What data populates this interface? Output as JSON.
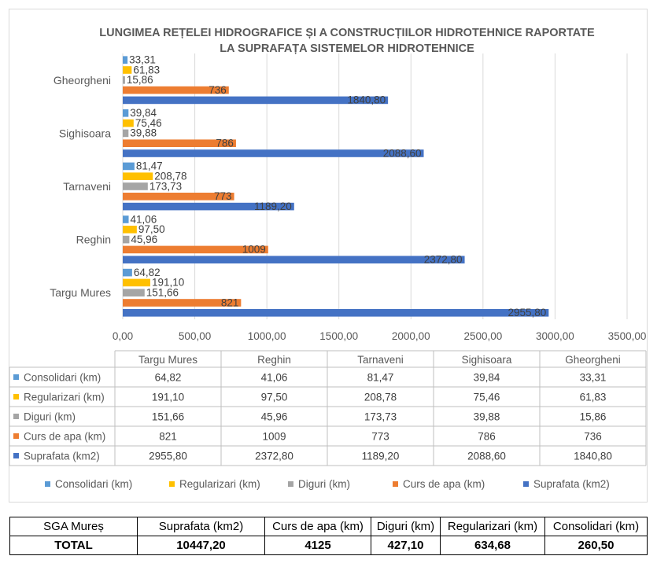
{
  "chart_data": {
    "type": "bar",
    "orientation": "horizontal",
    "title": "LUNGIMEA REȚELEI HIDROGRAFICE ȘI A CONSTRUCȚIILOR HIDROTEHNICE RAPORTATE LA SUPRAFAȚA SISTEMELOR HIDROTEHNICE",
    "title_lines": [
      "LUNGIMEA REȚELEI HIDROGRAFICE ȘI A CONSTRUCȚIILOR HIDROTEHNICE RAPORTATE",
      "LA SUPRAFAȚA SISTEMELOR HIDROTEHNICE"
    ],
    "categories": [
      "Targu Mures",
      "Reghin",
      "Tarnaveni",
      "Sighisoara",
      "Gheorgheni"
    ],
    "series": [
      {
        "name": "Consolidari (km)",
        "color": "#5b9bd5",
        "values": [
          64.82,
          41.06,
          81.47,
          39.84,
          33.31
        ],
        "labels": [
          "64,82",
          "41,06",
          "81,47",
          "39,84",
          "33,31"
        ]
      },
      {
        "name": "Regularizari (km)",
        "color": "#ffc000",
        "values": [
          191.1,
          97.5,
          208.78,
          75.46,
          61.83
        ],
        "labels": [
          "191,10",
          "97,50",
          "208,78",
          "75,46",
          "61,83"
        ]
      },
      {
        "name": "Diguri (km)",
        "color": "#a5a5a5",
        "values": [
          151.66,
          45.96,
          173.73,
          39.88,
          15.86
        ],
        "labels": [
          "151,66",
          "45,96",
          "173,73",
          "39,88",
          "15,86"
        ]
      },
      {
        "name": "Curs de apa (km)",
        "color": "#ed7d31",
        "values": [
          821,
          1009,
          773,
          786,
          736
        ],
        "labels": [
          "821",
          "1009",
          "773",
          "786",
          "736"
        ]
      },
      {
        "name": "Suprafata (km2)",
        "color": "#4472c4",
        "values": [
          2955.8,
          2372.8,
          1189.2,
          2088.6,
          1840.8
        ],
        "labels": [
          "2955,80",
          "2372,80",
          "1189,20",
          "2088,60",
          "1840,80"
        ]
      }
    ],
    "xlim": [
      0,
      3500
    ],
    "xticks": [
      0,
      500,
      1000,
      1500,
      2000,
      2500,
      3000,
      3500
    ],
    "xtick_labels": [
      "0,00",
      "500,00",
      "1000,00",
      "1500,00",
      "2000,00",
      "2500,00",
      "3000,00",
      "3500,00"
    ],
    "grid": true,
    "legend": "bottom",
    "data_table": true
  },
  "total_table": {
    "headers": [
      "SGA Mureș",
      "Suprafata (km2)",
      "Curs de apa (km)",
      "Diguri (km)",
      "Regularizari (km)",
      "Consolidari (km)"
    ],
    "row": [
      "TOTAL",
      "10447,20",
      "4125",
      "427,10",
      "634,68",
      "260,50"
    ]
  }
}
